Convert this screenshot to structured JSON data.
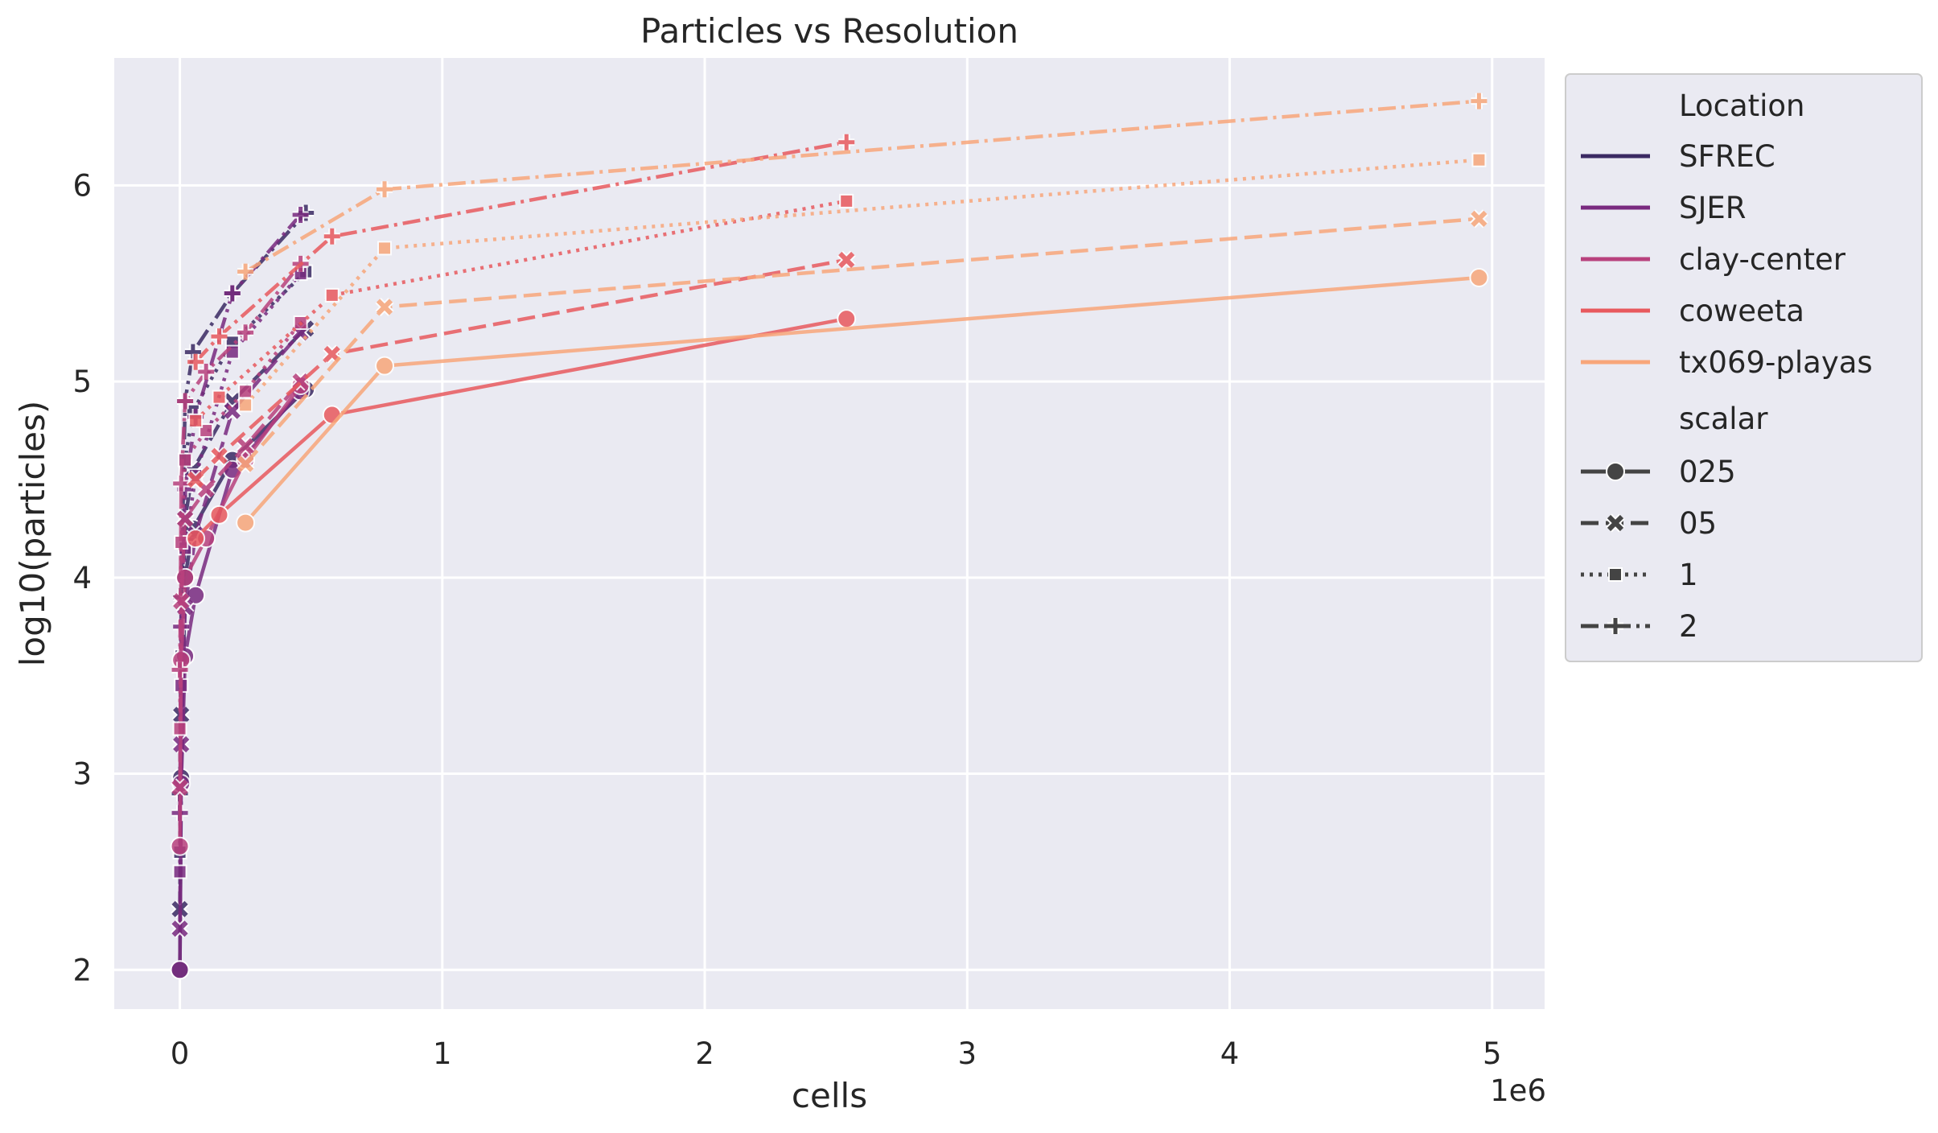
{
  "chart_data": {
    "type": "line",
    "title": "Particles vs Resolution",
    "xlabel": "cells",
    "ylabel": "log10(particles)",
    "x_offset_label": "1e6",
    "x_scale_factor": 1000000,
    "xlim": [
      -0.25,
      5.2
    ],
    "ylim": [
      1.8,
      6.65
    ],
    "x_ticks": [
      0,
      1,
      2,
      3,
      4,
      5
    ],
    "x_tick_labels": [
      "0",
      "1",
      "2",
      "3",
      "4",
      "5"
    ],
    "y_ticks": [
      2,
      3,
      4,
      5,
      6
    ],
    "y_tick_labels": [
      "2",
      "3",
      "4",
      "5",
      "6"
    ],
    "grid": true,
    "legend_position": "outside-right",
    "legend": {
      "hue_title": "Location",
      "style_title": "scalar",
      "locations": [
        {
          "name": "SFREC",
          "color": "#3b2a63"
        },
        {
          "name": "SJER",
          "color": "#792a7f"
        },
        {
          "name": "clay-center",
          "color": "#b8417d"
        },
        {
          "name": "coweeta",
          "color": "#e8595e"
        },
        {
          "name": "tx069-playas",
          "color": "#f8a67a"
        }
      ],
      "scalars": [
        {
          "name": "025",
          "marker": "circle",
          "dash": "solid"
        },
        {
          "name": "05",
          "marker": "x",
          "dash": "dashed"
        },
        {
          "name": "1",
          "marker": "square",
          "dash": "dotted"
        },
        {
          "name": "2",
          "marker": "plus",
          "dash": "dashdot"
        }
      ]
    },
    "series": [
      {
        "location": "SFREC",
        "scalar": "025",
        "points": [
          [
            0,
            2.0
          ],
          [
            0.005,
            2.98
          ],
          [
            0.02,
            4.0
          ],
          [
            0.05,
            4.25
          ],
          [
            0.2,
            4.6
          ],
          [
            0.48,
            4.96
          ]
        ]
      },
      {
        "location": "SFREC",
        "scalar": "05",
        "points": [
          [
            0,
            2.31
          ],
          [
            0.005,
            3.3
          ],
          [
            0.02,
            4.3
          ],
          [
            0.05,
            4.55
          ],
          [
            0.2,
            4.9
          ],
          [
            0.48,
            5.27
          ]
        ]
      },
      {
        "location": "SFREC",
        "scalar": "1",
        "points": [
          [
            0,
            2.6
          ],
          [
            0.005,
            3.6
          ],
          [
            0.02,
            4.6
          ],
          [
            0.05,
            4.85
          ],
          [
            0.2,
            5.2
          ],
          [
            0.48,
            5.56
          ]
        ]
      },
      {
        "location": "SFREC",
        "scalar": "2",
        "points": [
          [
            0,
            2.9
          ],
          [
            0.005,
            3.9
          ],
          [
            0.02,
            4.9
          ],
          [
            0.05,
            5.15
          ],
          [
            0.2,
            5.45
          ],
          [
            0.48,
            5.86
          ]
        ]
      },
      {
        "location": "SJER",
        "scalar": "025",
        "points": [
          [
            0,
            2.0
          ],
          [
            0.005,
            2.95
          ],
          [
            0.02,
            3.6
          ],
          [
            0.06,
            3.91
          ],
          [
            0.2,
            4.55
          ],
          [
            0.46,
            4.95
          ]
        ]
      },
      {
        "location": "SJER",
        "scalar": "05",
        "points": [
          [
            0,
            2.21
          ],
          [
            0.005,
            3.15
          ],
          [
            0.02,
            3.85
          ],
          [
            0.06,
            4.22
          ],
          [
            0.2,
            4.85
          ],
          [
            0.46,
            5.25
          ]
        ]
      },
      {
        "location": "SJER",
        "scalar": "1",
        "points": [
          [
            0,
            2.5
          ],
          [
            0.005,
            3.45
          ],
          [
            0.02,
            4.15
          ],
          [
            0.06,
            4.52
          ],
          [
            0.2,
            5.15
          ],
          [
            0.46,
            5.55
          ]
        ]
      },
      {
        "location": "SJER",
        "scalar": "2",
        "points": [
          [
            0,
            2.8
          ],
          [
            0.005,
            3.75
          ],
          [
            0.02,
            4.45
          ],
          [
            0.06,
            4.82
          ],
          [
            0.2,
            5.45
          ],
          [
            0.46,
            5.85
          ]
        ]
      },
      {
        "location": "clay-center",
        "scalar": "025",
        "points": [
          [
            0,
            2.63
          ],
          [
            0.005,
            3.58
          ],
          [
            0.02,
            4.0
          ],
          [
            0.1,
            4.2
          ],
          [
            0.25,
            4.6
          ],
          [
            0.46,
            4.98
          ]
        ]
      },
      {
        "location": "clay-center",
        "scalar": "05",
        "points": [
          [
            0,
            2.93
          ],
          [
            0.005,
            3.88
          ],
          [
            0.02,
            4.3
          ],
          [
            0.1,
            4.45
          ],
          [
            0.25,
            4.67
          ],
          [
            0.46,
            5.0
          ]
        ]
      },
      {
        "location": "clay-center",
        "scalar": "1",
        "points": [
          [
            0,
            3.23
          ],
          [
            0.005,
            4.18
          ],
          [
            0.02,
            4.6
          ],
          [
            0.1,
            4.75
          ],
          [
            0.25,
            4.95
          ],
          [
            0.46,
            5.3
          ]
        ]
      },
      {
        "location": "clay-center",
        "scalar": "2",
        "points": [
          [
            0,
            3.53
          ],
          [
            0.005,
            4.48
          ],
          [
            0.02,
            4.9
          ],
          [
            0.1,
            5.05
          ],
          [
            0.25,
            5.25
          ],
          [
            0.46,
            5.6
          ]
        ]
      },
      {
        "location": "coweeta",
        "scalar": "025",
        "points": [
          [
            0.06,
            4.2
          ],
          [
            0.15,
            4.32
          ],
          [
            0.58,
            4.83
          ],
          [
            2.54,
            5.32
          ]
        ]
      },
      {
        "location": "coweeta",
        "scalar": "05",
        "points": [
          [
            0.06,
            4.5
          ],
          [
            0.15,
            4.62
          ],
          [
            0.58,
            5.14
          ],
          [
            2.54,
            5.62
          ]
        ]
      },
      {
        "location": "coweeta",
        "scalar": "1",
        "points": [
          [
            0.06,
            4.8
          ],
          [
            0.15,
            4.92
          ],
          [
            0.58,
            5.44
          ],
          [
            2.54,
            5.92
          ]
        ]
      },
      {
        "location": "coweeta",
        "scalar": "2",
        "points": [
          [
            0.06,
            5.1
          ],
          [
            0.15,
            5.23
          ],
          [
            0.58,
            5.74
          ],
          [
            2.54,
            6.22
          ]
        ]
      },
      {
        "location": "tx069-playas",
        "scalar": "025",
        "points": [
          [
            0.25,
            4.28
          ],
          [
            0.78,
            5.08
          ],
          [
            4.95,
            5.53
          ]
        ]
      },
      {
        "location": "tx069-playas",
        "scalar": "05",
        "points": [
          [
            0.25,
            4.58
          ],
          [
            0.78,
            5.38
          ],
          [
            4.95,
            5.83
          ]
        ]
      },
      {
        "location": "tx069-playas",
        "scalar": "1",
        "points": [
          [
            0.25,
            4.88
          ],
          [
            0.78,
            5.68
          ],
          [
            4.95,
            6.13
          ]
        ]
      },
      {
        "location": "tx069-playas",
        "scalar": "2",
        "points": [
          [
            0.25,
            5.56
          ],
          [
            0.78,
            5.98
          ],
          [
            4.95,
            6.43
          ]
        ]
      }
    ]
  }
}
